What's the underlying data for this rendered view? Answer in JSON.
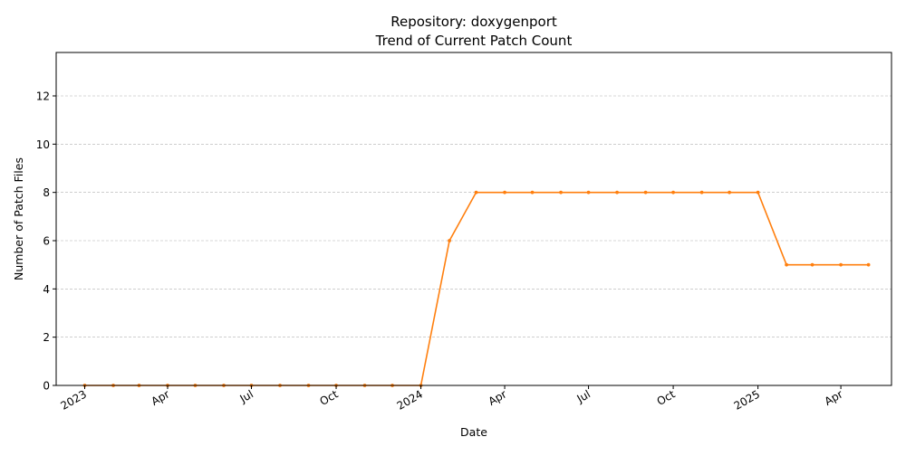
{
  "chart_data": {
    "type": "line",
    "title_line1": "Repository: doxygenport",
    "title_line2": "Trend of Current Patch Count",
    "xlabel": "Date",
    "ylabel": "Number of Patch Files",
    "ylim": [
      0,
      13.8
    ],
    "xlim": [
      "2022-12-01",
      "2025-05-26"
    ],
    "yticks": [
      0,
      2,
      4,
      6,
      8,
      10,
      12
    ],
    "xticks": [
      {
        "date": "2023-01-01",
        "label": "2023"
      },
      {
        "date": "2023-04-01",
        "label": "Apr"
      },
      {
        "date": "2023-07-01",
        "label": "Jul"
      },
      {
        "date": "2023-10-01",
        "label": "Oct"
      },
      {
        "date": "2024-01-01",
        "label": "2024"
      },
      {
        "date": "2024-04-01",
        "label": "Apr"
      },
      {
        "date": "2024-07-01",
        "label": "Jul"
      },
      {
        "date": "2024-10-01",
        "label": "Oct"
      },
      {
        "date": "2025-01-01",
        "label": "2025"
      },
      {
        "date": "2025-04-01",
        "label": "Apr"
      }
    ],
    "grid": {
      "y": true,
      "x": false
    },
    "series": [
      {
        "color": "#ff7f0e",
        "x": [
          "2023-01-01",
          "2023-02-01",
          "2023-03-01",
          "2023-04-01",
          "2023-05-01",
          "2023-06-01",
          "2023-07-01",
          "2023-08-01",
          "2023-09-01",
          "2023-10-01",
          "2023-11-01",
          "2023-12-01",
          "2024-01-01",
          "2024-02-01",
          "2024-03-01",
          "2024-04-01",
          "2024-05-01",
          "2024-06-01",
          "2024-07-01",
          "2024-08-01",
          "2024-09-01",
          "2024-10-01",
          "2024-11-01",
          "2024-12-01",
          "2025-01-01",
          "2025-02-01",
          "2025-03-01",
          "2025-04-01",
          "2025-05-01"
        ],
        "values": [
          0,
          0,
          0,
          0,
          0,
          0,
          0,
          0,
          0,
          0,
          0,
          0,
          0,
          6,
          8,
          8,
          8,
          8,
          8,
          8,
          8,
          8,
          8,
          8,
          8,
          5,
          5,
          5,
          5
        ]
      }
    ]
  }
}
